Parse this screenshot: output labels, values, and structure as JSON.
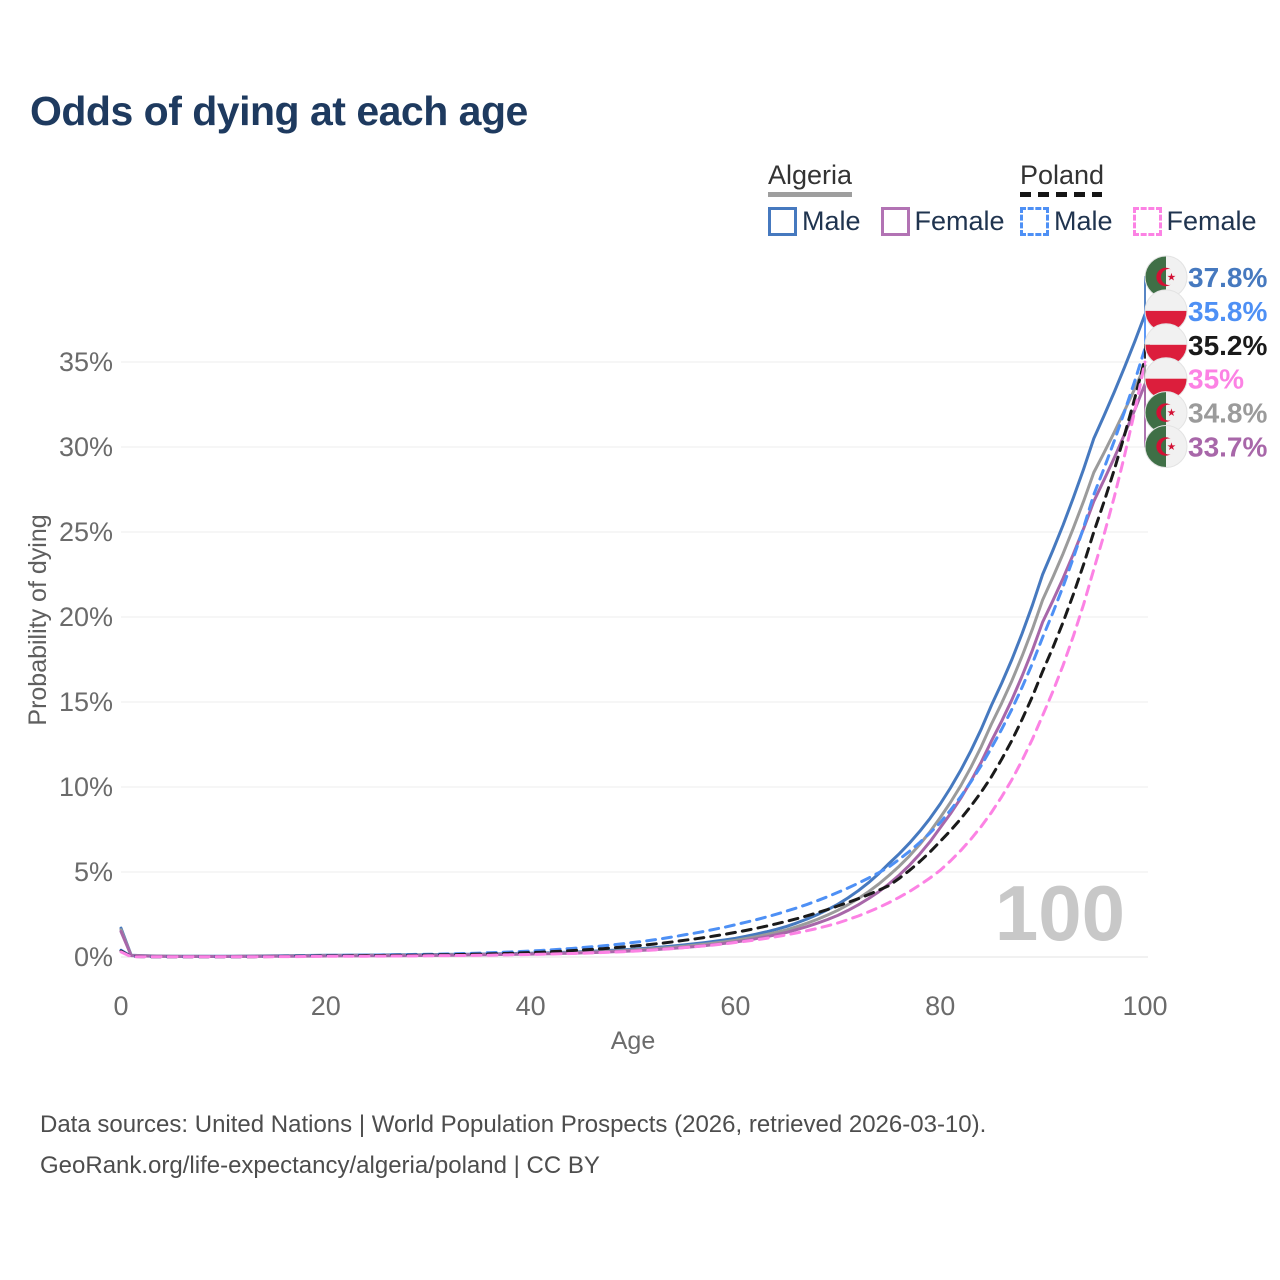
{
  "header": {
    "title": "Odds of dying at each age"
  },
  "legend": {
    "groups": [
      {
        "name": "Algeria",
        "line_style": "solid",
        "underline_color": "#9e9e9e",
        "items": [
          {
            "label": "Male",
            "color": "#4679bf",
            "dashed": false
          },
          {
            "label": "Female",
            "color": "#b273b4",
            "dashed": false
          }
        ]
      },
      {
        "name": "Poland",
        "line_style": "dashed",
        "underline_color": "#151515",
        "items": [
          {
            "label": "Male",
            "color": "#4e90f5",
            "dashed": true
          },
          {
            "label": "Female",
            "color": "#fc82e4",
            "dashed": true
          }
        ]
      }
    ]
  },
  "chart_data": {
    "type": "line",
    "title": "Odds of dying at each age",
    "xlabel": "Age",
    "ylabel": "Probability of dying",
    "xlim": [
      0,
      100
    ],
    "ylim_pct": [
      0,
      38
    ],
    "x_ticks": [
      0,
      20,
      40,
      60,
      80,
      100
    ],
    "y_tick_labels": [
      "0%",
      "5%",
      "10%",
      "15%",
      "20%",
      "25%",
      "30%",
      "35%"
    ],
    "grid": true,
    "legend_position": "top-right",
    "watermark_age_counter": "100",
    "ages": [
      0,
      1,
      5,
      10,
      15,
      20,
      25,
      30,
      35,
      40,
      45,
      50,
      55,
      60,
      65,
      70,
      75,
      80,
      85,
      90,
      95,
      100
    ],
    "series": [
      {
        "id": "algeria-male",
        "country": "Algeria",
        "sex": "Male",
        "flag": "algeria",
        "color": "#4679bf",
        "dashed": false,
        "end_label": "37.8%",
        "values": [
          1.7,
          0.1,
          0.04,
          0.04,
          0.07,
          0.1,
          0.12,
          0.14,
          0.17,
          0.22,
          0.31,
          0.46,
          0.71,
          1.1,
          1.8,
          3.1,
          5.5,
          9.0,
          14.8,
          22.5,
          30.5,
          37.8
        ]
      },
      {
        "id": "algeria-both",
        "country": "Algeria",
        "sex": "Both sexes",
        "flag": "algeria",
        "color": "#9b9b9b",
        "dashed": false,
        "end_label": "34.8%",
        "values": [
          1.6,
          0.09,
          0.04,
          0.03,
          0.06,
          0.08,
          0.1,
          0.12,
          0.15,
          0.19,
          0.27,
          0.41,
          0.63,
          0.98,
          1.6,
          2.75,
          4.8,
          8.2,
          13.7,
          21.0,
          28.5,
          34.8
        ]
      },
      {
        "id": "algeria-female",
        "country": "Algeria",
        "sex": "Female",
        "flag": "algeria",
        "color": "#a867a9",
        "dashed": false,
        "end_label": "33.7%",
        "values": [
          1.5,
          0.08,
          0.03,
          0.03,
          0.04,
          0.06,
          0.07,
          0.09,
          0.13,
          0.17,
          0.24,
          0.36,
          0.56,
          0.88,
          1.45,
          2.45,
          4.3,
          7.6,
          12.7,
          19.7,
          26.8,
          33.7
        ]
      },
      {
        "id": "poland-male",
        "country": "Poland",
        "sex": "Male",
        "flag": "poland",
        "color": "#4e90f5",
        "dashed": true,
        "end_label": "35.8%",
        "values": [
          0.4,
          0.03,
          0.01,
          0.01,
          0.04,
          0.09,
          0.12,
          0.16,
          0.23,
          0.35,
          0.55,
          0.85,
          1.3,
          1.9,
          2.7,
          3.8,
          5.3,
          7.9,
          12.3,
          18.8,
          27.2,
          35.8
        ]
      },
      {
        "id": "poland-both",
        "country": "Poland",
        "sex": "Both sexes",
        "flag": "poland",
        "color": "#1a1a1a",
        "dashed": true,
        "end_label": "35.2%",
        "values": [
          0.35,
          0.03,
          0.01,
          0.01,
          0.03,
          0.07,
          0.09,
          0.12,
          0.17,
          0.26,
          0.41,
          0.64,
          0.98,
          1.45,
          2.1,
          3.0,
          4.2,
          6.8,
          10.6,
          16.8,
          25.0,
          35.2
        ]
      },
      {
        "id": "poland-female",
        "country": "Poland",
        "sex": "Female",
        "flag": "poland",
        "color": "#fc82e4",
        "dashed": true,
        "end_label": "35%",
        "values": [
          0.3,
          0.02,
          0.01,
          0.01,
          0.02,
          0.04,
          0.05,
          0.07,
          0.1,
          0.15,
          0.22,
          0.34,
          0.55,
          0.85,
          1.3,
          2.0,
          3.2,
          5.1,
          8.5,
          14.2,
          22.8,
          35.0
        ]
      }
    ],
    "flag_colors": {
      "algeria_green": "#3f6f46",
      "algeria_white": "#f1f1f1",
      "algeria_red": "#d21034",
      "poland_white": "#f1f1f1",
      "poland_red": "#dc1e3c"
    },
    "style": {
      "grid_color": "#ececec",
      "axis_text_color": "#6b6b6b",
      "watermark_color": "#c8c8c8"
    }
  },
  "footer": {
    "line1": "Data sources: United Nations | World Population Prospects (2026, retrieved 2026-03-10).",
    "line2": "GeoRank.org/life-expectancy/algeria/poland | CC BY"
  }
}
